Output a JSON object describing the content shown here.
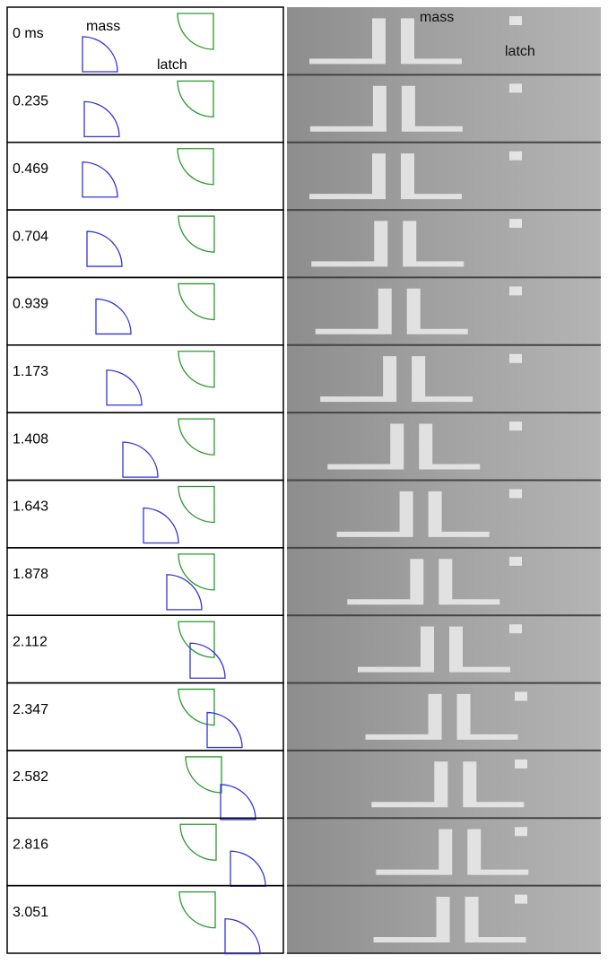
{
  "figure": {
    "simulation": {
      "mass_label": "mass",
      "latch_label": "latch"
    },
    "photo": {
      "mass_label": "mass",
      "latch_label": "latch"
    },
    "frames": [
      "0 ms",
      "0.235",
      "0.469",
      "0.704",
      "0.939",
      "1.173",
      "1.408",
      "1.643",
      "1.878",
      "2.112",
      "2.347",
      "2.582",
      "2.816",
      "3.051"
    ]
  }
}
